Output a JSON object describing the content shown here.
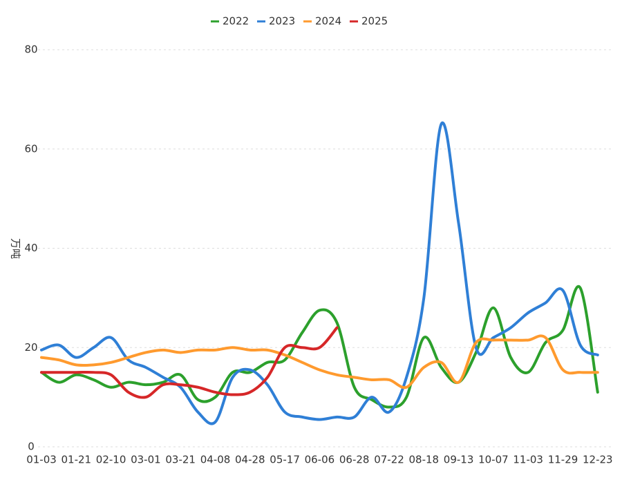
{
  "chart_data": {
    "type": "line",
    "y_label": "万吨",
    "categories": [
      "01-03",
      null,
      "01-21",
      null,
      "02-10",
      null,
      "03-01",
      null,
      "03-21",
      null,
      "04-08",
      null,
      "04-28",
      null,
      "05-17",
      null,
      "06-06",
      null,
      "06-28",
      null,
      "07-22",
      null,
      "08-18",
      null,
      "09-13",
      null,
      "10-07",
      null,
      "11-03",
      null,
      "11-29",
      null,
      "12-23"
    ],
    "series": [
      {
        "name": "2022",
        "color": "#2ca02c",
        "values": [
          15,
          13,
          14.5,
          13.5,
          12,
          13,
          12.5,
          13,
          14.5,
          9.5,
          10,
          15,
          15,
          17,
          17.5,
          23,
          27.5,
          25,
          12,
          9.5,
          8,
          10,
          22,
          16,
          13,
          19,
          28,
          18,
          15,
          21,
          23.5,
          32,
          11
        ]
      },
      {
        "name": "2023",
        "color": "#2f7fd6",
        "values": [
          19.5,
          20.5,
          18,
          20,
          22,
          17.5,
          16,
          14,
          12,
          7,
          5,
          14,
          15.5,
          12.5,
          7,
          6,
          5.5,
          6,
          6,
          10,
          7,
          14,
          30,
          65,
          45,
          20,
          22,
          24,
          27,
          29,
          31.5,
          20.5,
          18.5
        ]
      },
      {
        "name": "2024",
        "color": "#ff9a2e",
        "values": [
          18,
          17.5,
          16.5,
          16.5,
          17,
          18,
          19,
          19.5,
          19,
          19.5,
          19.5,
          20,
          19.5,
          19.5,
          18.5,
          17,
          15.5,
          14.5,
          14,
          13.5,
          13.5,
          12,
          16,
          17,
          13,
          21,
          21.5,
          21.5,
          21.5,
          22,
          15.5,
          15,
          15
        ]
      },
      {
        "name": "2025",
        "color": "#d62728",
        "values": [
          15,
          15,
          15,
          15,
          14.5,
          11,
          10,
          12.5,
          12.5,
          12,
          11,
          10.5,
          11,
          14,
          20,
          20,
          20,
          24,
          null,
          null,
          null,
          null,
          null,
          null,
          null,
          null,
          null,
          null,
          null,
          null,
          null,
          null,
          null
        ]
      }
    ],
    "ylim": [
      0,
      80
    ],
    "yticks": [
      0,
      20,
      40,
      60,
      80
    ],
    "grid": true,
    "legend": "top"
  }
}
